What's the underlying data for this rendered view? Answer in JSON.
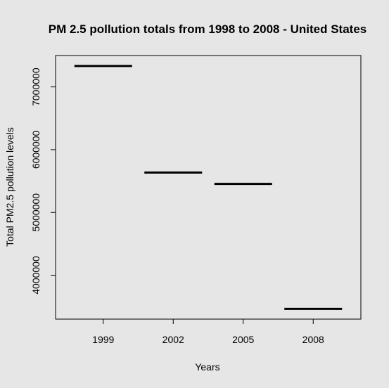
{
  "chart_data": {
    "type": "bar",
    "title": "PM 2.5 pollution totals from 1998 to 2008 - United States",
    "xlabel": "Years",
    "ylabel": "Total PM2.5 pollution levels",
    "categories": [
      "1999",
      "2002",
      "2005",
      "2008"
    ],
    "values": [
      7332967,
      5635780,
      5454703,
      3464206
    ],
    "ylim": [
      3300000,
      7500000
    ],
    "yticks": [
      4000000,
      5000000,
      6000000,
      7000000
    ],
    "ytick_labels": [
      "4000000",
      "5000000",
      "6000000",
      "7000000"
    ],
    "grid": false,
    "legend": "none"
  },
  "colors": {
    "background": "#e6e6e6",
    "line": "#000000"
  }
}
